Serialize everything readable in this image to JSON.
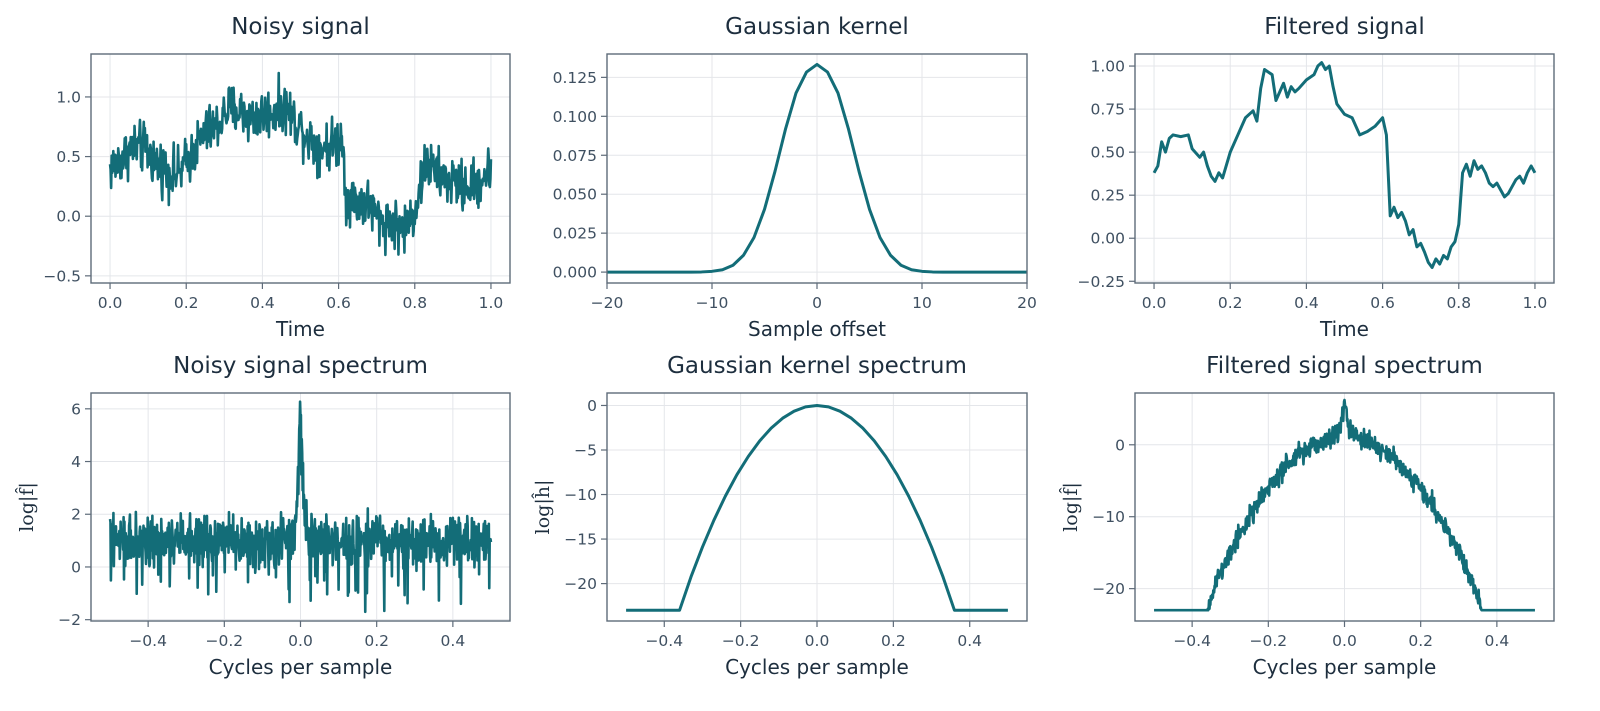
{
  "colors": {
    "line": "#136d78",
    "text": "#1d2e3e",
    "frame": "#5e6b79",
    "grid": "#e4e6ea"
  },
  "chart_data": [
    {
      "id": "noisy_signal",
      "type": "line",
      "title": "Noisy signal",
      "xlabel": "Time",
      "ylabel": "",
      "xlim": [
        -0.05,
        1.05
      ],
      "ylim": [
        -0.56,
        1.36
      ],
      "xticks": [
        0.0,
        0.2,
        0.4,
        0.6,
        0.8,
        1.0
      ],
      "xticklabels": [
        "0.0",
        "0.2",
        "0.4",
        "0.6",
        "0.8",
        "1.0"
      ],
      "yticks": [
        -0.5,
        0.0,
        0.5,
        1.0
      ],
      "yticklabels": [
        "−0.5",
        "0.0",
        "0.5",
        "1.0"
      ],
      "grid": true,
      "series": [
        {
          "style": "noisy",
          "noise": 0.13,
          "points": 700,
          "x": [
            0.0,
            0.03,
            0.06,
            0.09,
            0.12,
            0.15,
            0.18,
            0.22,
            0.25,
            0.28,
            0.31,
            0.34,
            0.37,
            0.4,
            0.43,
            0.46,
            0.49,
            0.52,
            0.55,
            0.58,
            0.61,
            0.62,
            0.65,
            0.68,
            0.71,
            0.74,
            0.77,
            0.8,
            0.83,
            0.86,
            0.89,
            0.92,
            0.95,
            1.0
          ],
          "y": [
            0.4,
            0.48,
            0.58,
            0.57,
            0.45,
            0.38,
            0.35,
            0.55,
            0.7,
            0.75,
            0.9,
            0.88,
            0.82,
            0.85,
            0.88,
            0.92,
            0.78,
            0.67,
            0.58,
            0.6,
            0.66,
            0.15,
            0.13,
            0.1,
            -0.05,
            -0.05,
            -0.12,
            0.05,
            0.45,
            0.35,
            0.3,
            0.25,
            0.25,
            0.38
          ]
        }
      ]
    },
    {
      "id": "gaussian_kernel",
      "type": "line",
      "title": "Gaussian kernel",
      "xlabel": "Sample offset",
      "ylabel": "",
      "xlim": [
        -20,
        20
      ],
      "ylim": [
        -0.007,
        0.14
      ],
      "xticks": [
        -20,
        -10,
        0,
        10,
        20
      ],
      "xticklabels": [
        "−20",
        "−10",
        "0",
        "10",
        "20"
      ],
      "yticks": [
        0.0,
        0.025,
        0.05,
        0.075,
        0.1,
        0.125
      ],
      "yticklabels": [
        "0.000",
        "0.025",
        "0.050",
        "0.075",
        "0.100",
        "0.125"
      ],
      "grid": true,
      "series": [
        {
          "style": "clean",
          "x": [
            -20,
            -19,
            -18,
            -17,
            -16,
            -15,
            -14,
            -13,
            -12,
            -11,
            -10,
            -9,
            -8,
            -7,
            -6,
            -5,
            -4,
            -3,
            -2,
            -1,
            0,
            1,
            2,
            3,
            4,
            5,
            6,
            7,
            8,
            9,
            10,
            11,
            12,
            13,
            14,
            15,
            16,
            17,
            18,
            19,
            20
          ],
          "y": [
            0.0,
            0.0,
            0.0,
            0.0,
            0.0,
            0.0,
            0.0,
            0.0,
            0.0,
            0.0001,
            0.0005,
            0.0015,
            0.0044,
            0.0108,
            0.0222,
            0.0403,
            0.0647,
            0.0918,
            0.1149,
            0.1284,
            0.1333,
            0.1284,
            0.1149,
            0.0918,
            0.0647,
            0.0403,
            0.0222,
            0.0108,
            0.0044,
            0.0015,
            0.0005,
            0.0001,
            0.0,
            0.0,
            0.0,
            0.0,
            0.0,
            0.0,
            0.0,
            0.0,
            0.0
          ]
        }
      ]
    },
    {
      "id": "filtered_signal",
      "type": "line",
      "title": "Filtered signal",
      "xlabel": "Time",
      "ylabel": "",
      "xlim": [
        -0.05,
        1.05
      ],
      "ylim": [
        -0.26,
        1.07
      ],
      "xticks": [
        0.0,
        0.2,
        0.4,
        0.6,
        0.8,
        1.0
      ],
      "xticklabels": [
        "0.0",
        "0.2",
        "0.4",
        "0.6",
        "0.8",
        "1.0"
      ],
      "yticks": [
        -0.25,
        0.0,
        0.25,
        0.5,
        0.75,
        1.0
      ],
      "yticklabels": [
        "−0.25",
        "0.00",
        "0.25",
        "0.50",
        "0.75",
        "1.00"
      ],
      "grid": true,
      "series": [
        {
          "style": "clean",
          "x": [
            0.0,
            0.01,
            0.02,
            0.03,
            0.04,
            0.05,
            0.07,
            0.09,
            0.1,
            0.12,
            0.13,
            0.14,
            0.15,
            0.16,
            0.17,
            0.18,
            0.2,
            0.22,
            0.24,
            0.26,
            0.27,
            0.28,
            0.29,
            0.31,
            0.32,
            0.33,
            0.34,
            0.35,
            0.36,
            0.37,
            0.38,
            0.4,
            0.42,
            0.43,
            0.44,
            0.45,
            0.46,
            0.47,
            0.48,
            0.5,
            0.52,
            0.54,
            0.56,
            0.58,
            0.6,
            0.61,
            0.62,
            0.63,
            0.64,
            0.65,
            0.66,
            0.67,
            0.68,
            0.69,
            0.7,
            0.71,
            0.72,
            0.73,
            0.74,
            0.75,
            0.76,
            0.77,
            0.78,
            0.79,
            0.8,
            0.81,
            0.82,
            0.83,
            0.84,
            0.85,
            0.86,
            0.87,
            0.88,
            0.89,
            0.9,
            0.91,
            0.92,
            0.93,
            0.94,
            0.95,
            0.96,
            0.97,
            0.98,
            0.99,
            1.0
          ],
          "y": [
            0.38,
            0.42,
            0.56,
            0.5,
            0.58,
            0.6,
            0.59,
            0.6,
            0.52,
            0.47,
            0.5,
            0.42,
            0.36,
            0.33,
            0.38,
            0.35,
            0.5,
            0.6,
            0.7,
            0.74,
            0.68,
            0.87,
            0.98,
            0.95,
            0.8,
            0.85,
            0.9,
            0.82,
            0.88,
            0.85,
            0.87,
            0.92,
            0.95,
            1.0,
            1.02,
            0.98,
            1.0,
            0.88,
            0.78,
            0.72,
            0.7,
            0.6,
            0.62,
            0.65,
            0.7,
            0.6,
            0.13,
            0.18,
            0.12,
            0.15,
            0.1,
            0.02,
            0.05,
            -0.05,
            -0.03,
            -0.08,
            -0.14,
            -0.17,
            -0.12,
            -0.15,
            -0.1,
            -0.12,
            -0.05,
            -0.02,
            0.08,
            0.38,
            0.43,
            0.36,
            0.45,
            0.4,
            0.42,
            0.38,
            0.32,
            0.3,
            0.32,
            0.28,
            0.24,
            0.26,
            0.3,
            0.34,
            0.36,
            0.32,
            0.38,
            0.42,
            0.38
          ]
        }
      ]
    },
    {
      "id": "noisy_spectrum",
      "type": "line",
      "title": "Noisy signal spectrum",
      "xlabel": "Cycles per sample",
      "ylabel": "log|f̂|",
      "xlim": [
        -0.55,
        0.55
      ],
      "ylim": [
        -2.05,
        6.6
      ],
      "xticks": [
        -0.4,
        -0.2,
        0.0,
        0.2,
        0.4
      ],
      "xticklabels": [
        "−0.4",
        "−0.2",
        "0.0",
        "0.2",
        "0.4"
      ],
      "yticks": [
        -2,
        0,
        2,
        4,
        6
      ],
      "yticklabels": [
        "−2",
        "0",
        "2",
        "4",
        "6"
      ],
      "grid": true,
      "series": [
        {
          "style": "spectrum-noisy",
          "noise": 0.55,
          "points": 900,
          "floor": -1.7,
          "x": [
            -0.5,
            -0.49,
            -0.3,
            -0.1,
            -0.02,
            -0.01,
            0.0,
            0.01,
            0.02,
            0.1,
            0.3,
            0.49,
            0.5
          ],
          "y": [
            1.0,
            1.0,
            1.0,
            1.0,
            1.2,
            2.0,
            6.2,
            2.0,
            1.2,
            1.0,
            1.0,
            1.0,
            1.0
          ]
        }
      ]
    },
    {
      "id": "kernel_spectrum",
      "type": "line",
      "title": "Gaussian kernel spectrum",
      "xlabel": "Cycles per sample",
      "ylabel": "log|ĥ|",
      "xlim": [
        -0.55,
        0.55
      ],
      "ylim": [
        -24.2,
        1.4
      ],
      "xticks": [
        -0.4,
        -0.2,
        0.0,
        0.2,
        0.4
      ],
      "xticklabels": [
        "−0.4",
        "−0.2",
        "0.0",
        "0.2",
        "0.4"
      ],
      "yticks": [
        -20,
        -15,
        -10,
        -5,
        0
      ],
      "yticklabels": [
        "−20",
        "−15",
        "−10",
        "−5",
        "0"
      ],
      "grid": true,
      "series": [
        {
          "style": "clean",
          "x": [
            -0.5,
            -0.36,
            -0.33,
            -0.3,
            -0.27,
            -0.24,
            -0.21,
            -0.18,
            -0.15,
            -0.12,
            -0.09,
            -0.06,
            -0.03,
            0.0,
            0.03,
            0.06,
            0.09,
            0.12,
            0.15,
            0.18,
            0.21,
            0.24,
            0.27,
            0.3,
            0.33,
            0.36,
            0.5
          ],
          "y": [
            -23.0,
            -23.0,
            -19.24,
            -15.9,
            -12.88,
            -10.18,
            -7.79,
            -5.73,
            -3.97,
            -2.55,
            -1.43,
            -0.64,
            -0.16,
            0.0,
            -0.16,
            -0.64,
            -1.43,
            -2.55,
            -3.97,
            -5.73,
            -7.79,
            -10.18,
            -12.88,
            -15.9,
            -19.24,
            -23.0,
            -23.0
          ]
        }
      ]
    },
    {
      "id": "filtered_spectrum",
      "type": "line",
      "title": "Filtered signal spectrum",
      "xlabel": "Cycles per sample",
      "ylabel": "log|f̂|",
      "xlim": [
        -0.55,
        0.55
      ],
      "ylim": [
        -24.5,
        7.2
      ],
      "xticks": [
        -0.4,
        -0.2,
        0.0,
        0.2,
        0.4
      ],
      "xticklabels": [
        "−0.4",
        "−0.2",
        "0.0",
        "0.2",
        "0.4"
      ],
      "yticks": [
        -20,
        -10,
        0
      ],
      "yticklabels": [
        "−20",
        "−10",
        "0"
      ],
      "grid": true,
      "series": [
        {
          "style": "spectrum-band",
          "noise": 0.8,
          "points": 900,
          "x": [
            -0.5,
            -0.36,
            -0.33,
            -0.3,
            -0.27,
            -0.24,
            -0.21,
            -0.18,
            -0.15,
            -0.12,
            -0.09,
            -0.06,
            -0.03,
            -0.01,
            0.0,
            0.01,
            0.03,
            0.06,
            0.09,
            0.12,
            0.15,
            0.18,
            0.21,
            0.24,
            0.27,
            0.3,
            0.33,
            0.36,
            0.5
          ],
          "y": [
            -23.0,
            -23.0,
            -18.2,
            -14.9,
            -11.9,
            -9.2,
            -6.8,
            -4.7,
            -3.0,
            -1.5,
            -0.4,
            0.4,
            1.1,
            2.5,
            6.2,
            2.5,
            1.1,
            0.4,
            -0.4,
            -1.5,
            -3.0,
            -4.7,
            -6.8,
            -9.2,
            -11.9,
            -14.9,
            -18.2,
            -23.0,
            -23.0
          ]
        }
      ]
    }
  ]
}
